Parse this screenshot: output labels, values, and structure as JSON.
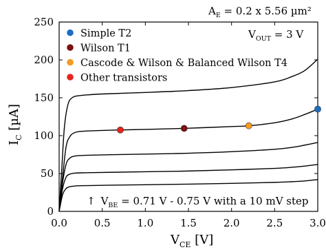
{
  "chart_data": {
    "type": "line",
    "xlabel": {
      "main": "V",
      "sub": "CE",
      "unit": " [V]"
    },
    "ylabel": {
      "main": "I",
      "sub": "C",
      "unit": " [µA]"
    },
    "xlim": [
      0,
      3.0
    ],
    "ylim": [
      0,
      250
    ],
    "x_ticks": [
      "0.0",
      "0.5",
      "1.0",
      "1.5",
      "2.0",
      "2.5",
      "3.0"
    ],
    "y_ticks": [
      "0",
      "50",
      "100",
      "150",
      "200",
      "250"
    ],
    "top_annotation": {
      "pre": "A",
      "sub": "E",
      "post": " = 0.2 x 5.56 µm²"
    },
    "vout_annotation": {
      "pre": "V",
      "sub": "OUT",
      "post": " = 3 V"
    },
    "vbe_annotation": {
      "arrow": "↑",
      "pre": "V",
      "sub": "BE",
      "post": " = 0.71 V - 0.75 V with a 10 mV step"
    },
    "curves": [
      {
        "x": [
          0,
          0.04,
          0.08,
          0.12,
          0.18,
          0.3,
          0.6,
          1.0,
          1.5,
          2.0,
          2.5,
          2.7,
          2.85,
          3.0
        ],
        "y": [
          0,
          22,
          30,
          32.5,
          33.5,
          34,
          34.6,
          35.2,
          36,
          37,
          38.3,
          39.2,
          40.2,
          42
        ]
      },
      {
        "x": [
          0,
          0.04,
          0.08,
          0.12,
          0.18,
          0.3,
          0.6,
          1.0,
          1.5,
          2.0,
          2.5,
          2.7,
          2.85,
          3.0
        ],
        "y": [
          0,
          30,
          45,
          49,
          50.5,
          51,
          51.6,
          52.3,
          53.3,
          54.8,
          56.8,
          58.2,
          59.8,
          62
        ]
      },
      {
        "x": [
          0,
          0.04,
          0.08,
          0.12,
          0.18,
          0.3,
          0.6,
          1.0,
          1.5,
          2.0,
          2.5,
          2.7,
          2.85,
          3.0
        ],
        "y": [
          0,
          38,
          62,
          70,
          73,
          74,
          74.8,
          75.6,
          76.8,
          78.8,
          82,
          84.5,
          87.5,
          91
        ]
      },
      {
        "x": [
          0,
          0.04,
          0.08,
          0.12,
          0.18,
          0.3,
          0.6,
          0.71,
          1.0,
          1.45,
          2.0,
          2.2,
          2.5,
          2.7,
          2.85,
          3.0
        ],
        "y": [
          0,
          45,
          85,
          98,
          104,
          106,
          107.2,
          107.5,
          108.2,
          109.6,
          112,
          113,
          117,
          122,
          128,
          135
        ]
      },
      {
        "x": [
          0,
          0.03,
          0.06,
          0.1,
          0.15,
          0.25,
          0.5,
          1.0,
          1.5,
          2.0,
          2.5,
          2.7,
          2.85,
          3.0
        ],
        "y": [
          0,
          55,
          110,
          140,
          150,
          153,
          155,
          157,
          159.5,
          163.5,
          171,
          178,
          186,
          201
        ]
      }
    ],
    "markers": [
      {
        "name": "Simple T2",
        "x": 3.0,
        "y": 135,
        "color": "#1a6fc4"
      },
      {
        "name": "Wilson T1",
        "x": 1.45,
        "y": 109.6,
        "color": "#7a1212"
      },
      {
        "name": "Cascode & Wilson & Balanced Wilson T4",
        "x": 2.2,
        "y": 113,
        "color": "#f59a23"
      },
      {
        "name": "Other transistors",
        "x": 0.71,
        "y": 107.5,
        "color": "#e8231f"
      }
    ],
    "legend": [
      {
        "label": "Simple T2",
        "color": "#1a6fc4"
      },
      {
        "label": "Wilson T1",
        "color": "#7a1212"
      },
      {
        "label": "Cascode & Wilson & Balanced Wilson T4",
        "color": "#f59a23"
      },
      {
        "label": "Other transistors",
        "color": "#e8231f"
      }
    ],
    "legend_position": "top-left",
    "grid": false
  }
}
